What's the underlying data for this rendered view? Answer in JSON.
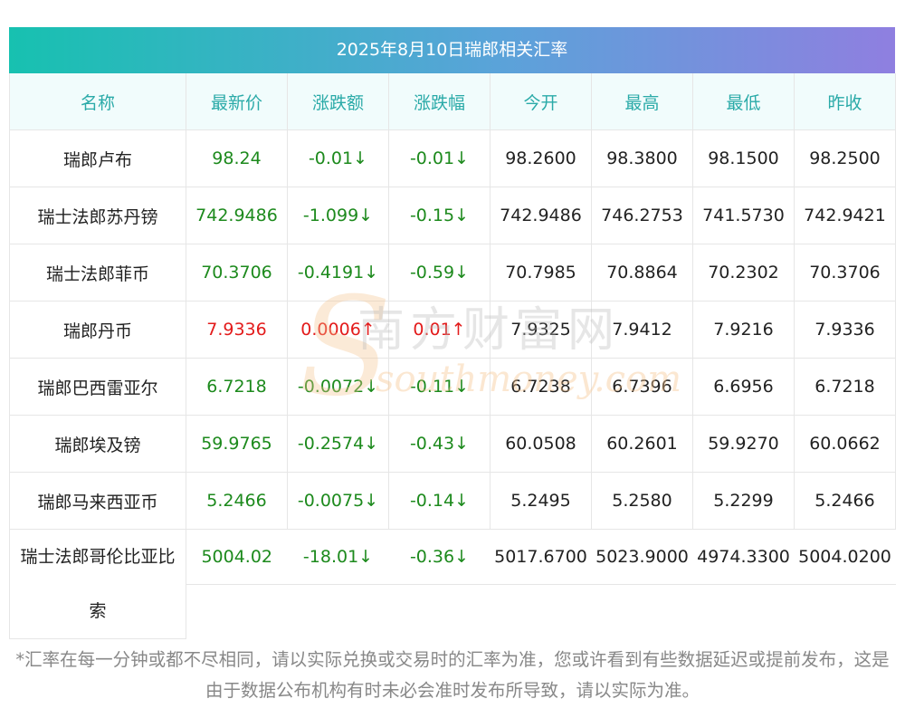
{
  "title": "2025年8月10日瑞郎相关汇率",
  "headers": [
    "名称",
    "最新价",
    "涨跌额",
    "涨跌幅",
    "今开",
    "最高",
    "最低",
    "昨收"
  ],
  "rows": [
    {
      "name": "瑞郎卢布",
      "latest": "98.24",
      "change": "-0.01↓",
      "pct": "-0.01↓",
      "open": "98.2600",
      "high": "98.3800",
      "low": "98.1500",
      "prev": "98.2500",
      "dir": "down"
    },
    {
      "name": "瑞士法郎苏丹镑",
      "latest": "742.9486",
      "change": "-1.099↓",
      "pct": "-0.15↓",
      "open": "742.9486",
      "high": "746.2753",
      "low": "741.5730",
      "prev": "742.9421",
      "dir": "down"
    },
    {
      "name": "瑞士法郎菲币",
      "latest": "70.3706",
      "change": "-0.4191↓",
      "pct": "-0.59↓",
      "open": "70.7985",
      "high": "70.8864",
      "low": "70.2302",
      "prev": "70.3706",
      "dir": "down"
    },
    {
      "name": "瑞郎丹币",
      "latest": "7.9336",
      "change": "0.0006↑",
      "pct": "0.01↑",
      "open": "7.9325",
      "high": "7.9412",
      "low": "7.9216",
      "prev": "7.9336",
      "dir": "up"
    },
    {
      "name": "瑞郎巴西雷亚尔",
      "latest": "6.7218",
      "change": "-0.0072↓",
      "pct": "-0.11↓",
      "open": "6.7238",
      "high": "6.7396",
      "low": "6.6956",
      "prev": "6.7218",
      "dir": "down"
    },
    {
      "name": "瑞郎埃及镑",
      "latest": "59.9765",
      "change": "-0.2574↓",
      "pct": "-0.43↓",
      "open": "60.0508",
      "high": "60.2601",
      "low": "59.9270",
      "prev": "60.0662",
      "dir": "down"
    },
    {
      "name": "瑞郎马来西亚币",
      "latest": "5.2466",
      "change": "-0.0075↓",
      "pct": "-0.14↓",
      "open": "5.2495",
      "high": "5.2580",
      "low": "5.2299",
      "prev": "5.2466",
      "dir": "down"
    },
    {
      "name": "瑞士法郎哥伦比亚比索",
      "latest": "5004.02",
      "change": "-18.01↓",
      "pct": "-0.36↓",
      "open": "5017.6700",
      "high": "5023.9000",
      "low": "4974.3300",
      "prev": "5004.0200",
      "dir": "down"
    }
  ],
  "watermark": {
    "cn": "南方财富网",
    "en": "southmoney.com"
  },
  "footnote": "*汇率在每一分钟或都不尽相同，请以实际兑换或交易时的汇率为准，您或许看到有些数据延迟或提前发布，这是由于数据公布机构有时未必会准时发布所导致，请以实际为准。",
  "colors": {
    "up": "#e31b1b",
    "down": "#1d8a1d",
    "header_text": "#2aaaa8",
    "header_bg": "#f1fcfc"
  }
}
